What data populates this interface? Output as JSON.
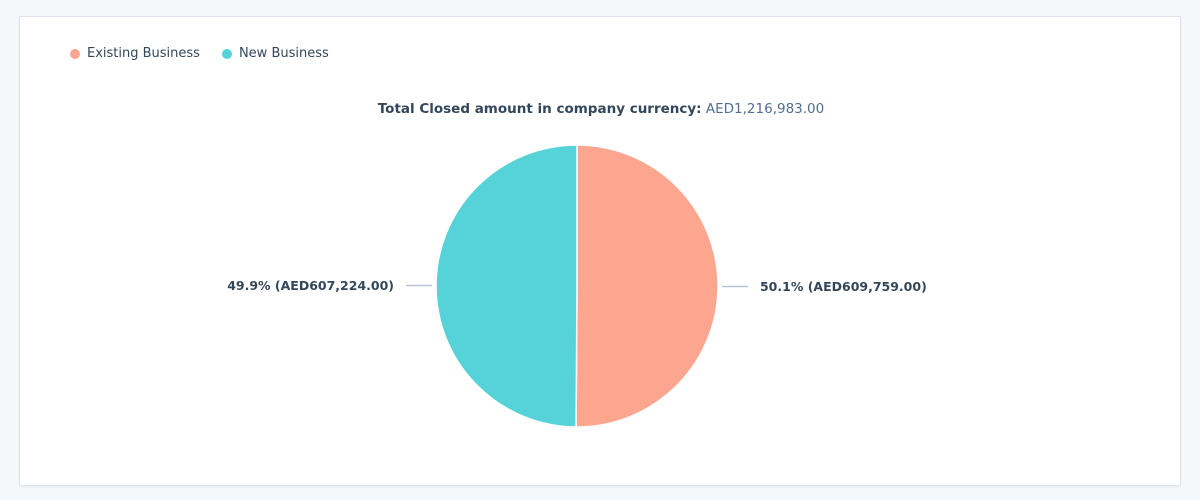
{
  "legend": [
    {
      "label": "Existing Business",
      "color": "#fca58f"
    },
    {
      "label": "New Business",
      "color": "#55d3d9"
    }
  ],
  "total": {
    "label": "Total Closed amount in company currency:",
    "value": "AED1,216,983.00"
  },
  "chart_data": {
    "type": "pie",
    "title": "Total Closed amount in company currency: AED1,216,983.00",
    "categories": [
      "Existing Business",
      "New Business"
    ],
    "values": [
      609759.0,
      607224.0
    ],
    "percentages": [
      50.1,
      49.9
    ],
    "data_labels": [
      "50.1% (AED609,759.00)",
      "49.9% (AED607,224.00)"
    ],
    "colors": [
      "#fca58f",
      "#55d3d9"
    ],
    "legend_position": "top-left"
  }
}
